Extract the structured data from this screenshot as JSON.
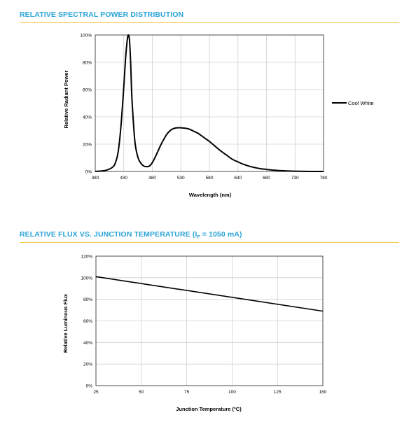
{
  "titles": {
    "spectral": "RELATIVE SPECTRAL POWER DISTRIBUTION",
    "flux_main": "RELATIVE FLUX VS. JUNCTION TEMPERATURE (I",
    "flux_sub": "F",
    "flux_tail": " = 1050 mA)"
  },
  "colors": {
    "title": "#2aa3d6",
    "rule": "#f2c94c",
    "line": "#000000",
    "grid": "#d0d0d0"
  },
  "chart_data": [
    {
      "type": "line",
      "xlabel": "Wavelength (nm)",
      "ylabel": "Relative Radiant Power",
      "xlim": [
        380,
        780
      ],
      "ylim": [
        0,
        100
      ],
      "x_ticks": [
        380,
        430,
        480,
        530,
        580,
        630,
        680,
        730,
        780
      ],
      "y_ticks": [
        "0%",
        "20%",
        "40%",
        "60%",
        "80%",
        "100%"
      ],
      "y_tick_values": [
        0,
        20,
        40,
        60,
        80,
        100
      ],
      "grid": true,
      "legend": "right",
      "series": [
        {
          "name": "Cool White",
          "x": [
            380,
            390,
            400,
            410,
            415,
            420,
            425,
            430,
            433,
            436,
            438,
            440,
            442,
            444,
            447,
            450,
            455,
            460,
            465,
            470,
            475,
            480,
            485,
            490,
            495,
            500,
            505,
            510,
            515,
            520,
            525,
            530,
            535,
            540,
            545,
            550,
            555,
            560,
            565,
            570,
            575,
            580,
            590,
            600,
            610,
            620,
            630,
            640,
            650,
            660,
            670,
            680,
            690,
            700,
            710,
            720,
            730,
            740,
            750,
            760,
            770,
            780
          ],
          "y": [
            0,
            0.3,
            1,
            3,
            6,
            14,
            33,
            62,
            82,
            96,
            100,
            96,
            80,
            56,
            35,
            20,
            10,
            6,
            4,
            3.5,
            4,
            6.5,
            10.5,
            15,
            19.5,
            23.5,
            27,
            29.5,
            31,
            31.8,
            32,
            32,
            31.8,
            31.5,
            31,
            30,
            29,
            28,
            26.5,
            25,
            23.5,
            22,
            18.5,
            15,
            12,
            9,
            7,
            5.2,
            3.8,
            2.8,
            2,
            1.5,
            1,
            0.7,
            0.5,
            0.3,
            0.2,
            0.1,
            0.05,
            0,
            0,
            0
          ]
        }
      ]
    },
    {
      "type": "line",
      "xlabel": "Junction Temperature (ºC)",
      "ylabel": "Relative Luminous Flux",
      "xlim": [
        25,
        150
      ],
      "ylim": [
        0,
        120
      ],
      "x_ticks": [
        25,
        50,
        75,
        100,
        125,
        150
      ],
      "y_ticks": [
        "0%",
        "20%",
        "40%",
        "60%",
        "80%",
        "100%",
        "120%"
      ],
      "y_tick_values": [
        0,
        20,
        40,
        60,
        80,
        100,
        120
      ],
      "grid": true,
      "series": [
        {
          "x": [
            25,
            150
          ],
          "y": [
            101,
            69
          ]
        }
      ]
    }
  ]
}
